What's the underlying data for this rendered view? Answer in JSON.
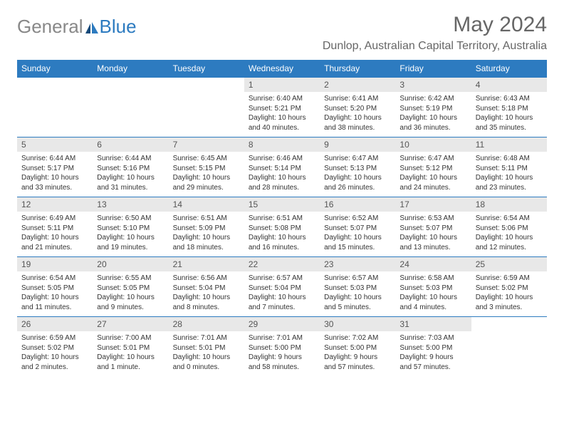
{
  "logo": {
    "text1": "General",
    "text2": "Blue"
  },
  "title": "May 2024",
  "location": "Dunlop, Australian Capital Territory, Australia",
  "colors": {
    "header_bg": "#2d7bc0",
    "header_text": "#ffffff",
    "daynum_bg": "#e8e8e8",
    "border": "#2d7bc0",
    "title_color": "#666666",
    "body_text": "#333333"
  },
  "weekdays": [
    "Sunday",
    "Monday",
    "Tuesday",
    "Wednesday",
    "Thursday",
    "Friday",
    "Saturday"
  ],
  "weeks": [
    [
      null,
      null,
      null,
      {
        "n": "1",
        "sr": "6:40 AM",
        "ss": "5:21 PM",
        "dl": "10 hours and 40 minutes."
      },
      {
        "n": "2",
        "sr": "6:41 AM",
        "ss": "5:20 PM",
        "dl": "10 hours and 38 minutes."
      },
      {
        "n": "3",
        "sr": "6:42 AM",
        "ss": "5:19 PM",
        "dl": "10 hours and 36 minutes."
      },
      {
        "n": "4",
        "sr": "6:43 AM",
        "ss": "5:18 PM",
        "dl": "10 hours and 35 minutes."
      }
    ],
    [
      {
        "n": "5",
        "sr": "6:44 AM",
        "ss": "5:17 PM",
        "dl": "10 hours and 33 minutes."
      },
      {
        "n": "6",
        "sr": "6:44 AM",
        "ss": "5:16 PM",
        "dl": "10 hours and 31 minutes."
      },
      {
        "n": "7",
        "sr": "6:45 AM",
        "ss": "5:15 PM",
        "dl": "10 hours and 29 minutes."
      },
      {
        "n": "8",
        "sr": "6:46 AM",
        "ss": "5:14 PM",
        "dl": "10 hours and 28 minutes."
      },
      {
        "n": "9",
        "sr": "6:47 AM",
        "ss": "5:13 PM",
        "dl": "10 hours and 26 minutes."
      },
      {
        "n": "10",
        "sr": "6:47 AM",
        "ss": "5:12 PM",
        "dl": "10 hours and 24 minutes."
      },
      {
        "n": "11",
        "sr": "6:48 AM",
        "ss": "5:11 PM",
        "dl": "10 hours and 23 minutes."
      }
    ],
    [
      {
        "n": "12",
        "sr": "6:49 AM",
        "ss": "5:11 PM",
        "dl": "10 hours and 21 minutes."
      },
      {
        "n": "13",
        "sr": "6:50 AM",
        "ss": "5:10 PM",
        "dl": "10 hours and 19 minutes."
      },
      {
        "n": "14",
        "sr": "6:51 AM",
        "ss": "5:09 PM",
        "dl": "10 hours and 18 minutes."
      },
      {
        "n": "15",
        "sr": "6:51 AM",
        "ss": "5:08 PM",
        "dl": "10 hours and 16 minutes."
      },
      {
        "n": "16",
        "sr": "6:52 AM",
        "ss": "5:07 PM",
        "dl": "10 hours and 15 minutes."
      },
      {
        "n": "17",
        "sr": "6:53 AM",
        "ss": "5:07 PM",
        "dl": "10 hours and 13 minutes."
      },
      {
        "n": "18",
        "sr": "6:54 AM",
        "ss": "5:06 PM",
        "dl": "10 hours and 12 minutes."
      }
    ],
    [
      {
        "n": "19",
        "sr": "6:54 AM",
        "ss": "5:05 PM",
        "dl": "10 hours and 11 minutes."
      },
      {
        "n": "20",
        "sr": "6:55 AM",
        "ss": "5:05 PM",
        "dl": "10 hours and 9 minutes."
      },
      {
        "n": "21",
        "sr": "6:56 AM",
        "ss": "5:04 PM",
        "dl": "10 hours and 8 minutes."
      },
      {
        "n": "22",
        "sr": "6:57 AM",
        "ss": "5:04 PM",
        "dl": "10 hours and 7 minutes."
      },
      {
        "n": "23",
        "sr": "6:57 AM",
        "ss": "5:03 PM",
        "dl": "10 hours and 5 minutes."
      },
      {
        "n": "24",
        "sr": "6:58 AM",
        "ss": "5:03 PM",
        "dl": "10 hours and 4 minutes."
      },
      {
        "n": "25",
        "sr": "6:59 AM",
        "ss": "5:02 PM",
        "dl": "10 hours and 3 minutes."
      }
    ],
    [
      {
        "n": "26",
        "sr": "6:59 AM",
        "ss": "5:02 PM",
        "dl": "10 hours and 2 minutes."
      },
      {
        "n": "27",
        "sr": "7:00 AM",
        "ss": "5:01 PM",
        "dl": "10 hours and 1 minute."
      },
      {
        "n": "28",
        "sr": "7:01 AM",
        "ss": "5:01 PM",
        "dl": "10 hours and 0 minutes."
      },
      {
        "n": "29",
        "sr": "7:01 AM",
        "ss": "5:00 PM",
        "dl": "9 hours and 58 minutes."
      },
      {
        "n": "30",
        "sr": "7:02 AM",
        "ss": "5:00 PM",
        "dl": "9 hours and 57 minutes."
      },
      {
        "n": "31",
        "sr": "7:03 AM",
        "ss": "5:00 PM",
        "dl": "9 hours and 57 minutes."
      },
      null
    ]
  ],
  "labels": {
    "sunrise": "Sunrise: ",
    "sunset": "Sunset: ",
    "daylight": "Daylight: "
  }
}
